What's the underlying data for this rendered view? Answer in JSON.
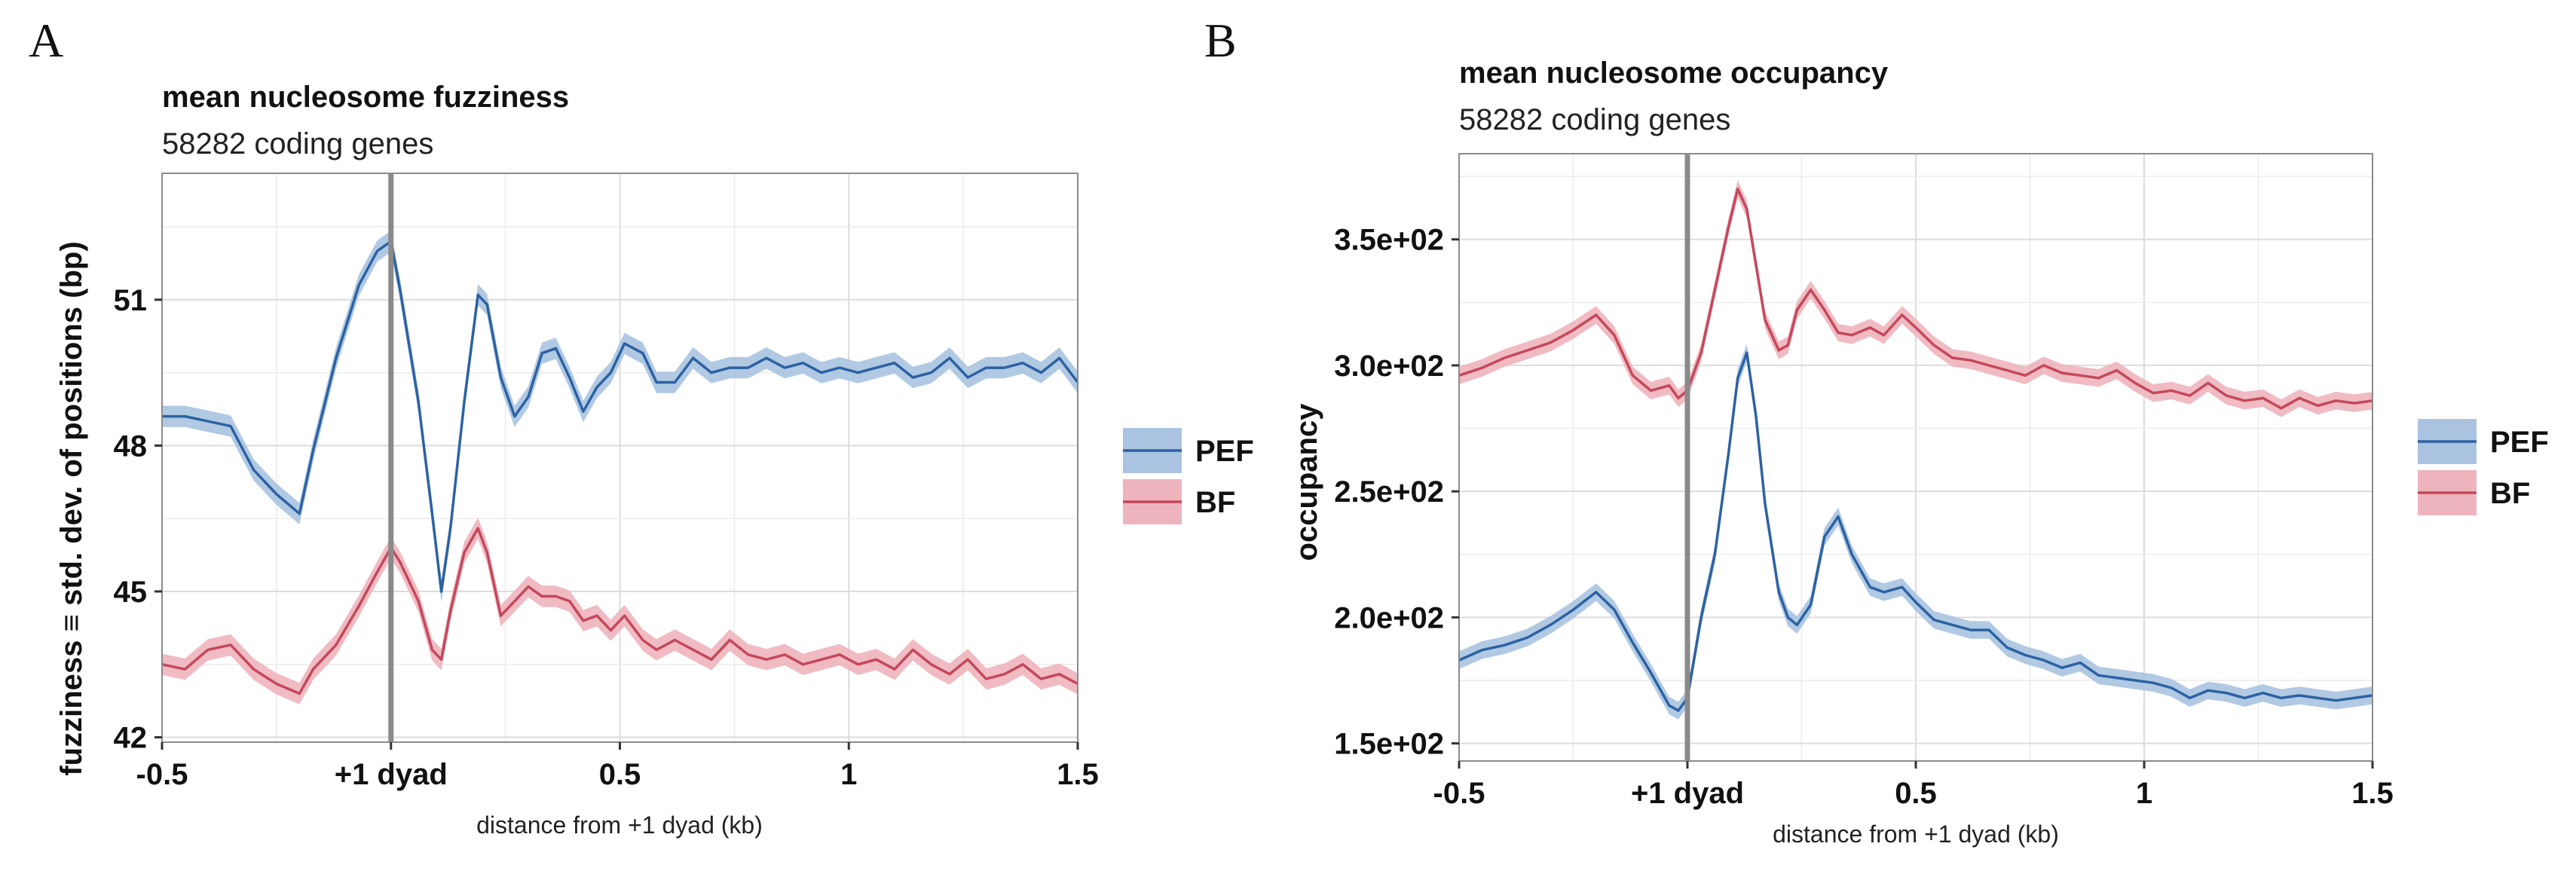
{
  "colors": {
    "PEF": "#2c62a3",
    "BF": "#c5485b",
    "PEF_band": "#a9c3e0",
    "BF_band": "#eeb4bd",
    "dyad_line": "#8a8a8a"
  },
  "chart_data": [
    {
      "panel": "A",
      "type": "line",
      "title": "mean nucleosome fuzziness",
      "subtitle": "58282 coding genes",
      "xlabel": "distance from +1 dyad (kb)",
      "ylabel": "fuzziness ≡ std. dev. of positions (bp)",
      "xlim": [
        -0.5,
        1.5
      ],
      "ylim": [
        41.9,
        53.6
      ],
      "x_ticks": [
        -0.5,
        0,
        0.5,
        1,
        1.5
      ],
      "x_tick_labels": [
        "-0.5",
        "+1 dyad",
        "0.5",
        "1",
        "1.5"
      ],
      "y_ticks": [
        42,
        45,
        48,
        51
      ],
      "y_tick_labels": [
        "42",
        "45",
        "48",
        "51"
      ],
      "vline_x": 0,
      "legend": {
        "position": "right",
        "entries": [
          "PEF",
          "BF"
        ]
      },
      "series": [
        {
          "name": "PEF",
          "x": [
            -0.5,
            -0.45,
            -0.4,
            -0.35,
            -0.3,
            -0.25,
            -0.2,
            -0.17,
            -0.12,
            -0.07,
            -0.03,
            0,
            0.02,
            0.06,
            0.09,
            0.11,
            0.13,
            0.16,
            0.19,
            0.21,
            0.24,
            0.27,
            0.3,
            0.33,
            0.36,
            0.39,
            0.42,
            0.45,
            0.48,
            0.51,
            0.55,
            0.58,
            0.62,
            0.66,
            0.7,
            0.74,
            0.78,
            0.82,
            0.86,
            0.9,
            0.94,
            0.98,
            1.02,
            1.06,
            1.1,
            1.14,
            1.18,
            1.22,
            1.26,
            1.3,
            1.34,
            1.38,
            1.42,
            1.46,
            1.5
          ],
          "values": [
            48.6,
            48.6,
            48.5,
            48.4,
            47.5,
            47.0,
            46.6,
            47.9,
            49.8,
            51.3,
            52.0,
            52.2,
            51.2,
            48.9,
            46.6,
            45.0,
            46.3,
            48.9,
            51.1,
            50.9,
            49.4,
            48.6,
            49.0,
            49.9,
            50.0,
            49.4,
            48.7,
            49.2,
            49.5,
            50.1,
            49.9,
            49.3,
            49.3,
            49.8,
            49.5,
            49.6,
            49.6,
            49.8,
            49.6,
            49.7,
            49.5,
            49.6,
            49.5,
            49.6,
            49.7,
            49.4,
            49.5,
            49.8,
            49.4,
            49.6,
            49.6,
            49.7,
            49.5,
            49.8,
            49.3
          ]
        },
        {
          "name": "BF",
          "x": [
            -0.5,
            -0.45,
            -0.4,
            -0.35,
            -0.3,
            -0.25,
            -0.2,
            -0.17,
            -0.12,
            -0.07,
            -0.03,
            0,
            0.02,
            0.06,
            0.09,
            0.11,
            0.13,
            0.16,
            0.19,
            0.21,
            0.24,
            0.27,
            0.3,
            0.33,
            0.36,
            0.39,
            0.42,
            0.45,
            0.48,
            0.51,
            0.55,
            0.58,
            0.62,
            0.66,
            0.7,
            0.74,
            0.78,
            0.82,
            0.86,
            0.9,
            0.94,
            0.98,
            1.02,
            1.06,
            1.1,
            1.14,
            1.18,
            1.22,
            1.26,
            1.3,
            1.34,
            1.38,
            1.42,
            1.46,
            1.5
          ],
          "values": [
            43.5,
            43.4,
            43.8,
            43.9,
            43.4,
            43.1,
            42.9,
            43.4,
            43.9,
            44.7,
            45.4,
            45.9,
            45.6,
            44.8,
            43.8,
            43.6,
            44.6,
            45.8,
            46.3,
            45.8,
            44.5,
            44.8,
            45.1,
            44.9,
            44.9,
            44.8,
            44.4,
            44.5,
            44.2,
            44.5,
            44.0,
            43.8,
            44.0,
            43.8,
            43.6,
            44.0,
            43.7,
            43.6,
            43.7,
            43.5,
            43.6,
            43.7,
            43.5,
            43.6,
            43.4,
            43.8,
            43.5,
            43.3,
            43.6,
            43.2,
            43.3,
            43.5,
            43.2,
            43.3,
            43.1
          ]
        }
      ]
    },
    {
      "panel": "B",
      "type": "line",
      "title": "mean nucleosome occupancy",
      "subtitle": "58282 coding genes",
      "xlabel": "distance from +1 dyad (kb)",
      "ylabel": "occupancy",
      "xlim": [
        -0.5,
        1.5
      ],
      "ylim": [
        143,
        384
      ],
      "x_ticks": [
        -0.5,
        0,
        0.5,
        1,
        1.5
      ],
      "x_tick_labels": [
        "-0.5",
        "+1 dyad",
        "0.5",
        "1",
        "1.5"
      ],
      "y_ticks": [
        150,
        200,
        250,
        300,
        350
      ],
      "y_tick_labels": [
        "1.5e+02",
        "2.0e+02",
        "2.5e+02",
        "3.0e+02",
        "3.5e+02"
      ],
      "vline_x": 0,
      "legend": {
        "position": "right",
        "entries": [
          "PEF",
          "BF"
        ]
      },
      "series": [
        {
          "name": "PEF",
          "x": [
            -0.5,
            -0.45,
            -0.4,
            -0.35,
            -0.3,
            -0.25,
            -0.2,
            -0.16,
            -0.12,
            -0.08,
            -0.04,
            -0.02,
            0,
            0.03,
            0.06,
            0.09,
            0.11,
            0.13,
            0.15,
            0.17,
            0.2,
            0.22,
            0.24,
            0.27,
            0.3,
            0.33,
            0.36,
            0.4,
            0.43,
            0.47,
            0.5,
            0.54,
            0.58,
            0.62,
            0.66,
            0.7,
            0.74,
            0.78,
            0.82,
            0.86,
            0.9,
            0.94,
            0.98,
            1.02,
            1.06,
            1.1,
            1.14,
            1.18,
            1.22,
            1.26,
            1.3,
            1.34,
            1.38,
            1.42,
            1.46,
            1.5
          ],
          "values": [
            183,
            187,
            189,
            192,
            197,
            203,
            210,
            203,
            190,
            178,
            165,
            163,
            168,
            200,
            225,
            265,
            295,
            305,
            280,
            245,
            210,
            200,
            197,
            205,
            232,
            240,
            225,
            212,
            210,
            212,
            206,
            199,
            197,
            195,
            195,
            188,
            185,
            183,
            180,
            182,
            177,
            176,
            175,
            174,
            172,
            168,
            171,
            170,
            168,
            170,
            168,
            169,
            168,
            167,
            168,
            169
          ]
        },
        {
          "name": "BF",
          "x": [
            -0.5,
            -0.45,
            -0.4,
            -0.35,
            -0.3,
            -0.25,
            -0.2,
            -0.16,
            -0.12,
            -0.08,
            -0.04,
            -0.02,
            0,
            0.03,
            0.06,
            0.09,
            0.11,
            0.13,
            0.15,
            0.17,
            0.2,
            0.22,
            0.24,
            0.27,
            0.3,
            0.33,
            0.36,
            0.4,
            0.43,
            0.47,
            0.5,
            0.54,
            0.58,
            0.62,
            0.66,
            0.7,
            0.74,
            0.78,
            0.82,
            0.86,
            0.9,
            0.94,
            0.98,
            1.02,
            1.06,
            1.1,
            1.14,
            1.18,
            1.22,
            1.26,
            1.3,
            1.34,
            1.38,
            1.42,
            1.46,
            1.5
          ],
          "values": [
            296,
            299,
            303,
            306,
            309,
            314,
            320,
            312,
            296,
            290,
            292,
            287,
            290,
            305,
            330,
            355,
            370,
            362,
            340,
            318,
            306,
            308,
            322,
            330,
            322,
            313,
            312,
            315,
            312,
            320,
            315,
            308,
            303,
            302,
            300,
            298,
            296,
            300,
            297,
            296,
            295,
            298,
            293,
            289,
            290,
            288,
            293,
            288,
            286,
            287,
            283,
            287,
            284,
            286,
            285,
            286
          ]
        }
      ]
    }
  ]
}
